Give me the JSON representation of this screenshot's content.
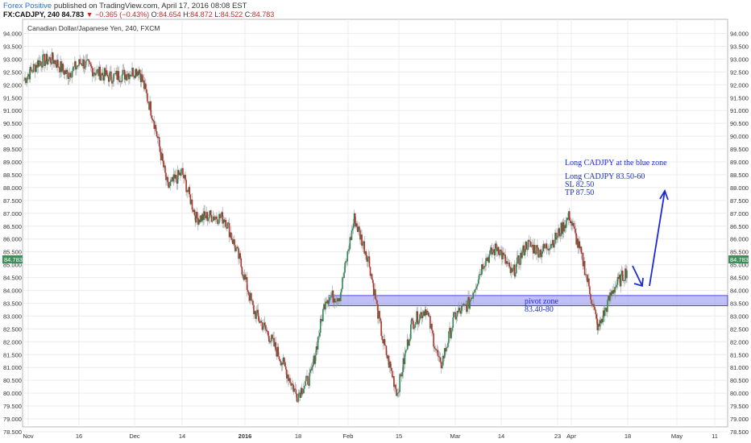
{
  "header": {
    "author": "Forex Positive",
    "published": " published on TradingView.com, April 17, 2016 08:08 EST",
    "symbol": "FX:CADJPY, 240",
    "last": "84.783",
    "change": "−0.365 (−0.43%)",
    "open_label": "O:",
    "open": "84.654",
    "high_label": "H:",
    "high": "84.872",
    "low_label": "L:",
    "low": "84.522",
    "close_label": "C:",
    "close": "84.783"
  },
  "chart_title": "Canadian Dollar/Japanese Yen, 240, FXCM",
  "colors": {
    "up": "#2f8a57",
    "down": "#b3322b",
    "zone": "#8c8cf0",
    "zone_border": "#2a2ad0",
    "annotation": "#1a2bd6",
    "price_tag": "#3e8e5a"
  },
  "annotations": {
    "line1": "Long CADJPY at the blue zone",
    "line2": "Long CADJPY 83.50-60",
    "line3": "SL 82.50",
    "line4": "TP 87.50",
    "pivot1": "pivot zone",
    "pivot2": "83.40-80"
  },
  "chart_data": {
    "type": "line",
    "title": "Canadian Dollar/Japanese Yen, 240, FXCM",
    "x_tick_labels": [
      "Nov",
      "16",
      "Dec",
      "14",
      "2016",
      "18",
      "Feb",
      "15",
      "Mar",
      "14",
      "23",
      "Apr",
      "18",
      "May",
      "11"
    ],
    "y_tick_labels": [
      "94.000",
      "93.500",
      "93.000",
      "92.500",
      "92.000",
      "91.500",
      "91.000",
      "90.500",
      "90.000",
      "89.500",
      "89.000",
      "88.500",
      "88.000",
      "87.500",
      "87.000",
      "86.500",
      "86.000",
      "85.500",
      "85.000",
      "84.500",
      "84.000",
      "83.500",
      "83.000",
      "82.500",
      "82.000",
      "81.500",
      "81.000",
      "80.500",
      "80.000",
      "79.500",
      "79.000",
      "78.500"
    ],
    "ylim": [
      78.5,
      94.0
    ],
    "last_price": "84.783",
    "grid": true,
    "series": [
      {
        "x": [
          "Nov 1",
          "Nov 5",
          "Nov 9",
          "Nov 13",
          "Nov 17",
          "Nov 21",
          "Nov 25",
          "Nov 29",
          "Dec 3",
          "Dec 7",
          "Dec 11",
          "Dec 15",
          "Dec 19",
          "Dec 23",
          "Dec 27",
          "Dec 31",
          "Jan 4",
          "Jan 8",
          "Jan 12",
          "Jan 16",
          "Jan 20",
          "Jan 22",
          "Jan 26",
          "Jan 30",
          "Feb 3",
          "Feb 7",
          "Feb 11",
          "Feb 15",
          "Feb 19",
          "Feb 23",
          "Feb 27",
          "Mar 2",
          "Mar 6",
          "Mar 10",
          "Mar 14",
          "Mar 18",
          "Mar 22",
          "Mar 26",
          "Mar 30",
          "Apr 3",
          "Apr 7",
          "Apr 11",
          "Apr 15"
        ],
        "values": [
          92.2,
          92.9,
          93.0,
          92.4,
          92.9,
          92.5,
          92.3,
          92.4,
          92.6,
          90.7,
          88.0,
          88.6,
          86.8,
          86.9,
          86.8,
          85.2,
          83.2,
          82.3,
          81.2,
          79.9,
          80.7,
          83.7,
          83.8,
          86.8,
          85.2,
          82.0,
          80.0,
          82.7,
          83.3,
          81.0,
          83.0,
          83.5,
          85.1,
          85.7,
          84.6,
          85.8,
          85.5,
          86.0,
          86.9,
          85.0,
          82.5,
          84.0,
          84.78
        ]
      }
    ]
  }
}
